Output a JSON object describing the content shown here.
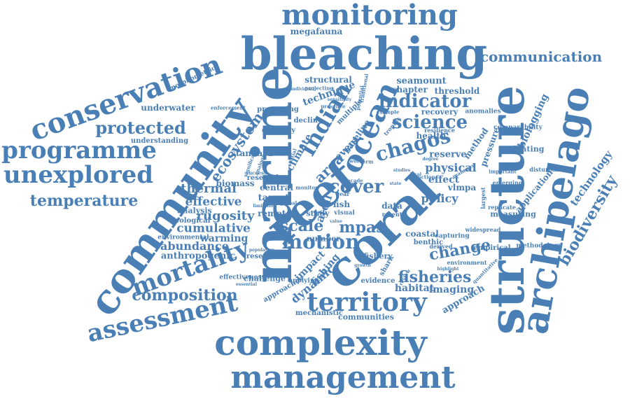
{
  "style": {
    "word_color": "#4a7fb5",
    "background": "#ffffff"
  },
  "words": {
    "monitoring": "monitoring",
    "bleaching": "bleaching",
    "communication": "communication",
    "megafauna": "megafauna",
    "conservation": "conservation",
    "community": "community",
    "marine": "marine",
    "coral": "coral",
    "reef": "reef",
    "structure": "structure",
    "archipelago": "archipelago",
    "complexity": "complexity",
    "management": "management",
    "territory": "territory",
    "assessment": "assessment",
    "mortality": "mortality",
    "programme": "programme",
    "unexplored": "unexplored",
    "temperature": "temperature",
    "protected": "protected",
    "ocean": "ocean",
    "indian": "indian",
    "chagos": "chagos",
    "science": "science",
    "indicator": "indicator",
    "biodiversity": "biodiversity",
    "technology": "technology",
    "biologging": "biologging",
    "fisheries": "fisheries",
    "motion": "motion",
    "scale": "scale",
    "mpas": "mpas",
    "composition": "composition",
    "cumulative": "cumulative",
    "rugosity": "rugosity",
    "thermal": "thermal",
    "effective": "effective",
    "abundance": "abundance",
    "anthropogenic": "anthropogenic",
    "warming": "warming",
    "ecosystem": "ecosystem",
    "structural": "structural",
    "seamount": "seamount",
    "chapter": "chapter",
    "threshold": "threshold",
    "technique": "technique",
    "underwater": "underwater",
    "understanding": "understanding",
    "standard": "standard",
    "diversity": "diversity",
    "preserving": "preserving",
    "health": "health",
    "recovery": "recovery",
    "anomalies": "anomalies",
    "resilience": "resilience",
    "method": "method",
    "reserve": "reserve",
    "physical": "physical",
    "effect": "effect",
    "policy": "policy",
    "vlmpa": "vlmpa",
    "cover": "cover",
    "data": "data",
    "change": "change",
    "coastal": "coastal",
    "benthic": "benthic",
    "habitat": "habitat",
    "imaging": "imaging",
    "approach": "approach",
    "dynamic": "dynamic",
    "impact": "impact",
    "fishing": "fishing",
    "communities": "communities",
    "mechanistic": "mechanistic",
    "challenge": "challenge",
    "researcher": "researcher",
    "ecological": "ecological",
    "environmental": "environmental",
    "analysis": "analysis",
    "biomass": "biomass",
    "effectiveness": "effectiveness",
    "remote": "remote",
    "target": "target",
    "central": "central",
    "research": "research",
    "atoll": "atoll",
    "fish": "fish",
    "area": "area",
    "event": "event",
    "baseline": "baseline",
    "climate": "climate",
    "decline": "decline",
    "morphometric": "morphometric",
    "enforcement": "enforcement",
    "projecting": "projecting",
    "evaluating": "evaluating",
    "comparability": "comparability",
    "application": "application",
    "pressure": "pressure",
    "measuring": "measuring",
    "replicate": "replicate",
    "largest": "largest",
    "widespread": "widespread",
    "capturing": "capturing",
    "empirical": "empirical",
    "methodology": "methodology",
    "derived": "derived",
    "environment": "environment",
    "quantitative": "quantitative",
    "evidence": "evidence",
    "applying": "applying",
    "approaches": "approaches",
    "number": "number",
    "fishery": "fishery",
    "shark": "shark",
    "recent": "recent",
    "study": "study",
    "visual": "visual",
    "decade": "decade",
    "success": "success",
    "limitation": "limitation",
    "example": "example",
    "trophic": "trophic",
    "multiple": "multiple",
    "presence": "presence",
    "significant": "significant",
    "disturbance": "disturbance",
    "emerging": "emerging",
    "important": "important",
    "manager": "manager",
    "review": "review",
    "degree": "degree",
    "growth": "growth",
    "population": "population",
    "highlight": "highlight",
    "world": "world",
    "term": "term",
    "year": "year",
    "state": "state",
    "global": "global",
    "potential": "potential",
    "traditional": "traditional",
    "individual": "individual",
    "sensitivity": "sensitivity",
    "analogue": "analogue",
    "spatial": "spatial",
    "function": "function",
    "local": "local",
    "studies": "studies",
    "model": "model",
    "monitor": "monitor",
    "value": "value",
    "essential": "essential"
  }
}
